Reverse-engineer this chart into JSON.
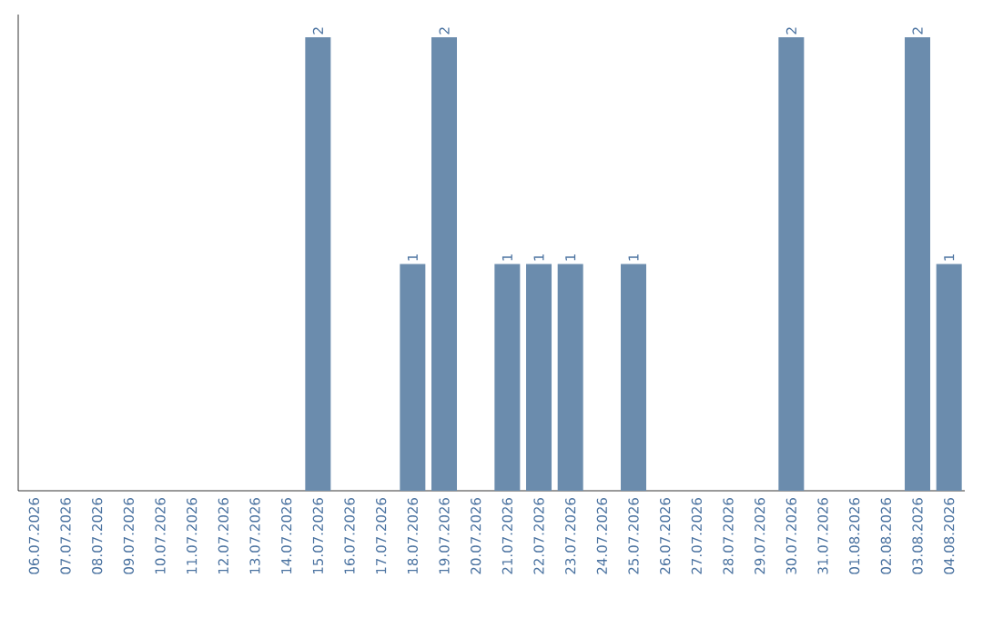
{
  "chart_data": {
    "type": "bar",
    "categories": [
      "06.07.2026",
      "07.07.2026",
      "08.07.2026",
      "09.07.2026",
      "10.07.2026",
      "11.07.2026",
      "12.07.2026",
      "13.07.2026",
      "14.07.2026",
      "15.07.2026",
      "16.07.2026",
      "17.07.2026",
      "18.07.2026",
      "19.07.2026",
      "20.07.2026",
      "21.07.2026",
      "22.07.2026",
      "23.07.2026",
      "24.07.2026",
      "25.07.2026",
      "26.07.2026",
      "27.07.2026",
      "28.07.2026",
      "29.07.2026",
      "30.07.2026",
      "31.07.2026",
      "01.08.2026",
      "02.08.2026",
      "03.08.2026",
      "04.08.2026"
    ],
    "values": [
      0,
      0,
      0,
      0,
      0,
      0,
      0,
      0,
      0,
      2,
      0,
      0,
      1,
      2,
      0,
      1,
      1,
      1,
      0,
      1,
      0,
      0,
      0,
      0,
      2,
      0,
      0,
      0,
      2,
      1
    ],
    "value_labels": [
      null,
      null,
      null,
      null,
      null,
      null,
      null,
      null,
      null,
      "2",
      null,
      null,
      "1",
      "2",
      null,
      "1",
      "1",
      "1",
      null,
      "1",
      null,
      null,
      null,
      null,
      "2",
      null,
      null,
      null,
      "2",
      "1"
    ],
    "color": "#6b8cad",
    "ylim": [
      0,
      2.1
    ],
    "tick_labels": "x"
  }
}
